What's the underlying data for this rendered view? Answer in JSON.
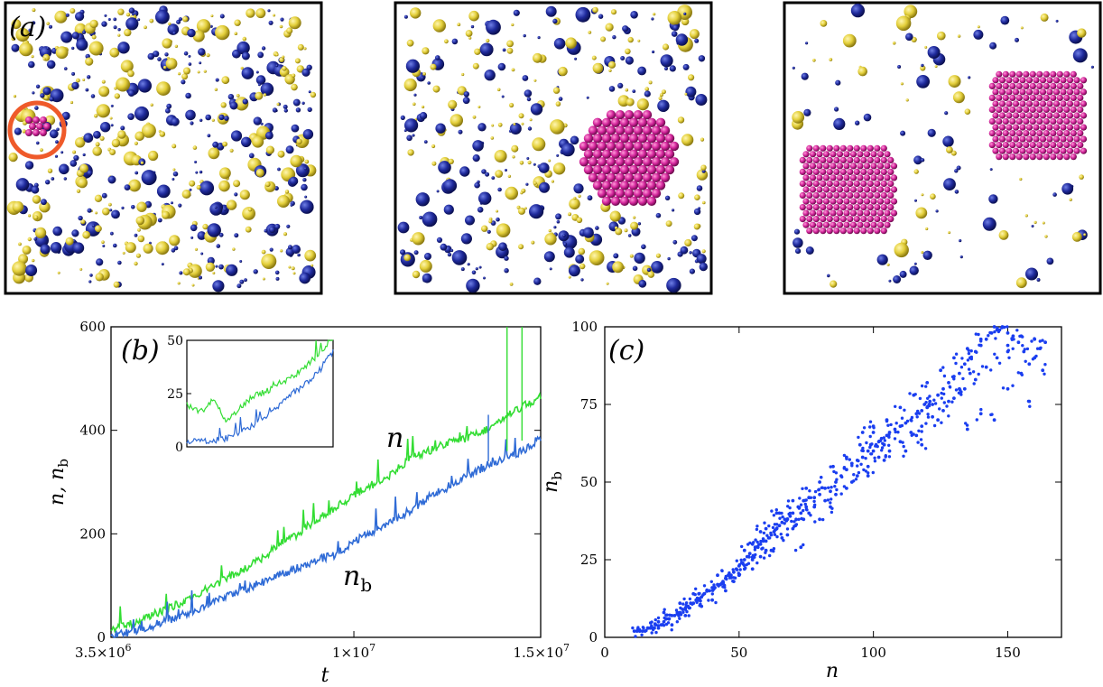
{
  "panel_a": {
    "label": "(a)",
    "colors": {
      "ion_a": "#1f2a9c",
      "ion_b": "#e3cf3a",
      "crystal": "#d2249a",
      "highlight": "#ef5a2a"
    }
  },
  "chart_data": [
    {
      "type": "line",
      "panel_label": "(b)",
      "xlabel": "t",
      "ylabel": "n, n_b",
      "xlim": [
        3500000,
        15000000
      ],
      "ylim": [
        0,
        600
      ],
      "x_ticks": [
        {
          "value": 3500000,
          "label": "3.5×10^6"
        },
        {
          "value": 10000000,
          "label": "1×10^7"
        },
        {
          "value": 15000000,
          "label": "1.5×10^7"
        }
      ],
      "y_ticks": [
        0,
        200,
        400,
        600
      ],
      "series": [
        {
          "name": "n",
          "color": "#33dd33",
          "x": [
            3500000,
            4000000,
            4500000,
            5000000,
            5500000,
            6000000,
            6500000,
            7000000,
            7500000,
            8000000,
            8500000,
            9000000,
            9500000,
            10000000,
            10500000,
            11000000,
            11500000,
            12000000,
            12500000,
            13000000,
            13500000,
            14000000,
            14500000,
            15000000
          ],
          "values": [
            15,
            25,
            40,
            55,
            70,
            90,
            110,
            130,
            150,
            180,
            200,
            225,
            250,
            275,
            295,
            315,
            345,
            360,
            375,
            385,
            400,
            420,
            445,
            465
          ]
        },
        {
          "name": "n_b",
          "color": "#2f6bd6",
          "x": [
            3500000,
            4000000,
            4500000,
            5000000,
            5500000,
            6000000,
            6500000,
            7000000,
            7500000,
            8000000,
            8500000,
            9000000,
            9500000,
            10000000,
            10500000,
            11000000,
            11500000,
            12000000,
            12500000,
            13000000,
            13500000,
            14000000,
            14500000,
            15000000
          ],
          "values": [
            3,
            10,
            20,
            32,
            45,
            60,
            75,
            90,
            105,
            120,
            135,
            150,
            160,
            185,
            205,
            225,
            245,
            270,
            290,
            310,
            330,
            345,
            360,
            385
          ]
        }
      ],
      "annotations": [
        "n",
        "n_b"
      ],
      "inset": {
        "ylim": [
          0,
          50
        ],
        "y_ticks": [
          0,
          25,
          50
        ],
        "series": [
          {
            "name": "n",
            "color": "#33dd33",
            "values": [
              20,
              16,
              22,
              12,
              18,
              24,
              26,
              30,
              33,
              38,
              44,
              52
            ]
          },
          {
            "name": "n_b",
            "color": "#2f6bd6",
            "values": [
              2,
              3,
              3,
              4,
              7,
              10,
              14,
              20,
              25,
              30,
              36,
              45
            ]
          }
        ]
      }
    },
    {
      "type": "scatter",
      "panel_label": "(c)",
      "xlabel": "n",
      "ylabel": "n_b",
      "xlim": [
        0,
        170
      ],
      "ylim": [
        0,
        100
      ],
      "x_ticks": [
        0,
        50,
        100,
        150
      ],
      "y_ticks": [
        0,
        25,
        50,
        75,
        100
      ],
      "color": "#1a3ef0",
      "points": [
        [
          11,
          2
        ],
        [
          12,
          2
        ],
        [
          13,
          2
        ],
        [
          14,
          2
        ],
        [
          15,
          2
        ],
        [
          16,
          3
        ],
        [
          17,
          3
        ],
        [
          18,
          3
        ],
        [
          19,
          4
        ],
        [
          20,
          5
        ],
        [
          21,
          4
        ],
        [
          22,
          5
        ],
        [
          23,
          6
        ],
        [
          24,
          6
        ],
        [
          25,
          7
        ],
        [
          26,
          7
        ],
        [
          27,
          8
        ],
        [
          28,
          8
        ],
        [
          29,
          9
        ],
        [
          30,
          9
        ],
        [
          31,
          10
        ],
        [
          32,
          11
        ],
        [
          33,
          11
        ],
        [
          34,
          12
        ],
        [
          35,
          12
        ],
        [
          35,
          14
        ],
        [
          36,
          13
        ],
        [
          37,
          14
        ],
        [
          38,
          15
        ],
        [
          39,
          15
        ],
        [
          40,
          16
        ],
        [
          41,
          16
        ],
        [
          42,
          17
        ],
        [
          43,
          17
        ],
        [
          44,
          18
        ],
        [
          45,
          19
        ],
        [
          46,
          20
        ],
        [
          47,
          20
        ],
        [
          48,
          21
        ],
        [
          49,
          22
        ],
        [
          50,
          23
        ],
        [
          51,
          24
        ],
        [
          52,
          25
        ],
        [
          52,
          28
        ],
        [
          53,
          26
        ],
        [
          54,
          27
        ],
        [
          55,
          25
        ],
        [
          56,
          29
        ],
        [
          57,
          29
        ],
        [
          58,
          30
        ],
        [
          59,
          31
        ],
        [
          60,
          31
        ],
        [
          61,
          32
        ],
        [
          62,
          33
        ],
        [
          63,
          34
        ],
        [
          64,
          35
        ],
        [
          65,
          36
        ],
        [
          66,
          37
        ],
        [
          67,
          38
        ],
        [
          68,
          38
        ],
        [
          69,
          39
        ],
        [
          70,
          40
        ],
        [
          71,
          36
        ],
        [
          72,
          42
        ],
        [
          73,
          40
        ],
        [
          74,
          44
        ],
        [
          75,
          42
        ],
        [
          76,
          45
        ],
        [
          78,
          45
        ],
        [
          80,
          46
        ],
        [
          82,
          48
        ],
        [
          84,
          47
        ],
        [
          86,
          50
        ],
        [
          88,
          52
        ],
        [
          90,
          54
        ],
        [
          92,
          56
        ],
        [
          94,
          57
        ],
        [
          96,
          58
        ],
        [
          98,
          60
        ],
        [
          99,
          62
        ],
        [
          100,
          60
        ],
        [
          101,
          62
        ],
        [
          102,
          63
        ],
        [
          103,
          64
        ],
        [
          104,
          62
        ],
        [
          105,
          65
        ],
        [
          106,
          66
        ],
        [
          108,
          67
        ],
        [
          110,
          68
        ],
        [
          112,
          69
        ],
        [
          114,
          70
        ],
        [
          116,
          72
        ],
        [
          118,
          73
        ],
        [
          119,
          75
        ],
        [
          120,
          74
        ],
        [
          121,
          76
        ],
        [
          122,
          75
        ],
        [
          124,
          78
        ],
        [
          126,
          80
        ],
        [
          128,
          82
        ],
        [
          130,
          84
        ],
        [
          132,
          85
        ],
        [
          134,
          88
        ],
        [
          136,
          90
        ],
        [
          138,
          92
        ],
        [
          140,
          94
        ],
        [
          142,
          96
        ],
        [
          144,
          98
        ],
        [
          146,
          99
        ],
        [
          148,
          100
        ],
        [
          150,
          98
        ],
        [
          152,
          97
        ],
        [
          154,
          95
        ],
        [
          156,
          92
        ],
        [
          158,
          88
        ],
        [
          160,
          90
        ],
        [
          162,
          93
        ],
        [
          164,
          95
        ],
        [
          55,
          22
        ],
        [
          58,
          26
        ],
        [
          62,
          28
        ],
        [
          66,
          32
        ],
        [
          70,
          35
        ],
        [
          74,
          38
        ],
        [
          78,
          42
        ],
        [
          82,
          44
        ],
        [
          86,
          46
        ],
        [
          90,
          48
        ],
        [
          94,
          52
        ],
        [
          98,
          55
        ],
        [
          102,
          58
        ],
        [
          106,
          60
        ],
        [
          110,
          63
        ],
        [
          114,
          66
        ],
        [
          118,
          68
        ],
        [
          122,
          71
        ],
        [
          126,
          73
        ],
        [
          130,
          77
        ],
        [
          134,
          80
        ],
        [
          138,
          83
        ],
        [
          142,
          87
        ],
        [
          146,
          90
        ],
        [
          150,
          94
        ],
        [
          155,
          97
        ],
        [
          160,
          96
        ],
        [
          45,
          15
        ],
        [
          50,
          20
        ],
        [
          55,
          30
        ],
        [
          60,
          35
        ],
        [
          65,
          40
        ],
        [
          70,
          44
        ],
        [
          75,
          48
        ],
        [
          80,
          50
        ],
        [
          85,
          55
        ],
        [
          90,
          58
        ],
        [
          95,
          62
        ],
        [
          100,
          66
        ],
        [
          105,
          70
        ],
        [
          110,
          74
        ],
        [
          115,
          78
        ],
        [
          120,
          82
        ],
        [
          125,
          86
        ],
        [
          130,
          90
        ],
        [
          135,
          93
        ],
        [
          140,
          96
        ],
        [
          145,
          100
        ],
        [
          150,
          92
        ],
        [
          140,
          72
        ],
        [
          145,
          70
        ],
        [
          150,
          80
        ],
        [
          155,
          85
        ],
        [
          158,
          76
        ],
        [
          163,
          86
        ],
        [
          135,
          67
        ],
        [
          73,
          29
        ],
        [
          80,
          38
        ],
        [
          30,
          7
        ],
        [
          25,
          4
        ],
        [
          20,
          3
        ],
        [
          40,
          12
        ],
        [
          42,
          20
        ],
        [
          48,
          18
        ],
        [
          52,
          22
        ],
        [
          60,
          28
        ],
        [
          68,
          33
        ],
        [
          76,
          40
        ],
        [
          84,
          42
        ],
        [
          92,
          50
        ],
        [
          98,
          52
        ],
        [
          104,
          57
        ],
        [
          112,
          60
        ],
        [
          116,
          65
        ],
        [
          124,
          70
        ],
        [
          128,
          76
        ],
        [
          132,
          80
        ],
        [
          136,
          85
        ],
        [
          118,
          62
        ],
        [
          96,
          66
        ],
        [
          100,
          68
        ],
        [
          64,
          40
        ],
        [
          58,
          34
        ],
        [
          36,
          10
        ],
        [
          33,
          14
        ],
        [
          28,
          11
        ],
        [
          22,
          8
        ]
      ]
    }
  ]
}
